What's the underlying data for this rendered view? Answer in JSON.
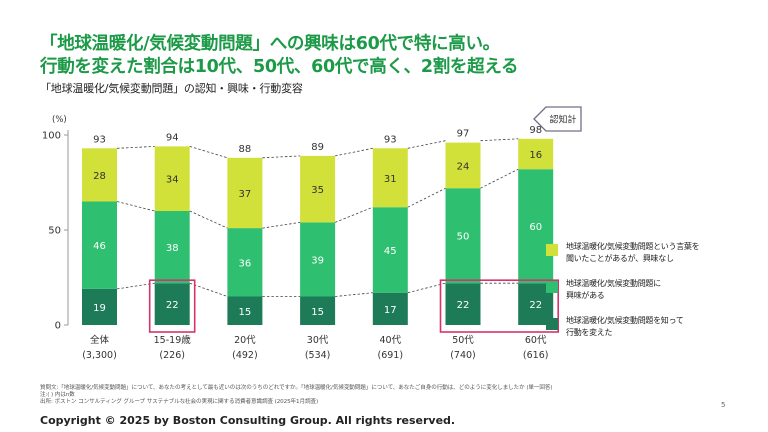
{
  "headline": {
    "line1": "「地球温暖化/気候変動問題」への興味は60代で特に高い。",
    "line2": "行動を変えた割合は10代、50代、60代で高く、2割を超える"
  },
  "subtitle": "「地球温暖化/気候変動問題」の認知・興味・行動変容",
  "colors": {
    "acted": "#1e7b58",
    "interested": "#2fbf71",
    "aware": "#d2e03a",
    "highlight": "#d6336c",
    "arrow_border": "#6f6f8a",
    "axis": "#999999",
    "dash": "#444444"
  },
  "chart_data": {
    "type": "bar",
    "stacked": true,
    "unit_label": "(%)",
    "ylim": [
      0,
      100
    ],
    "yticks": [
      0,
      50,
      100
    ],
    "categories": [
      "全体",
      "15-19歳",
      "20代",
      "30代",
      "40代",
      "50代",
      "60代"
    ],
    "sample_sizes": [
      "(3,300)",
      "(226)",
      "(492)",
      "(534)",
      "(691)",
      "(740)",
      "(616)"
    ],
    "series": [
      {
        "name": "地球温暖化/気候変動問題を知って行動を変えた",
        "values": [
          19,
          22,
          15,
          15,
          17,
          22,
          22
        ]
      },
      {
        "name": "地球温暖化/気候変動問題に興味がある",
        "values": [
          46,
          38,
          36,
          39,
          45,
          50,
          60
        ]
      },
      {
        "name": "地球温暖化/気候変動問題という言葉を聞いたことがあるが、興味なし",
        "values": [
          28,
          34,
          37,
          35,
          31,
          24,
          16
        ]
      }
    ],
    "totals": [
      93,
      94,
      88,
      89,
      93,
      97,
      98
    ],
    "total_label": "認知計",
    "highlighted_categories": [
      "15-19歳",
      "50代",
      "60代"
    ]
  },
  "legend": [
    {
      "label": "地球温暖化/気候変動問題という言葉を\n聞いたことがあるが、興味なし"
    },
    {
      "label": "地球温暖化/気候変動問題に\n興味がある"
    },
    {
      "label": "地球温暖化/気候変動問題を知って\n行動を変えた"
    }
  ],
  "footnotes": {
    "question": "質問文:「地球温暖化/気候変動問題」について、あなたの考えとして最も近いのは次のうちのどれですか。「地球温暖化/気候変動問題」について、あなたご自身の行動は、どのように変化しましたか (単一回答)",
    "note": "注:( ) 内はn数",
    "source": "出所: ボストン コンサルティング グループ サステナブルな社会の実現に関する消費者意識調査 (2025年1月調査)"
  },
  "page_number": "5",
  "copyright": "Copyright © 2025 by Boston Consulting Group. All rights reserved."
}
